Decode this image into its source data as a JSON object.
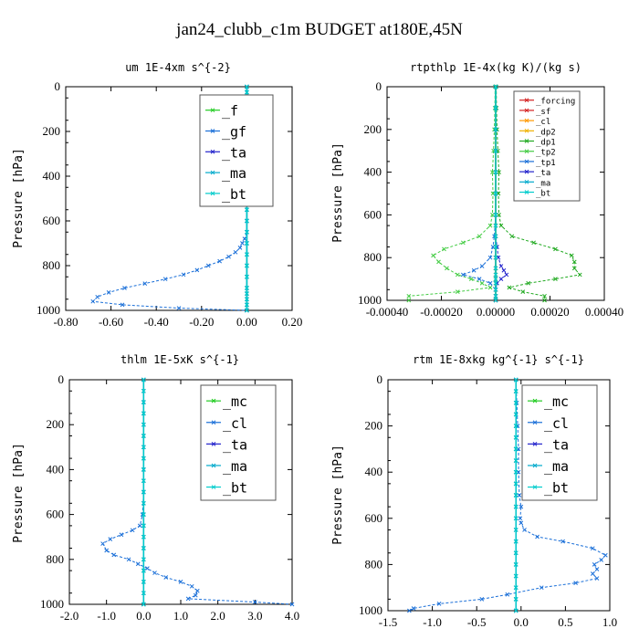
{
  "suptitle": "jan24_clubb_c1m  BUDGET at180E,45N",
  "colors": {
    "forcing": "#d42020",
    "sf": "#d42020",
    "cl": "#ff9900",
    "dp2": "#f0b000",
    "dp1": "#22aa22",
    "tp2": "#44cc44",
    "tp1": "#1a6fd8",
    "ta": "#2222cc",
    "ma": "#00aacc",
    "bt": "#00cccc",
    "f": "#22cc22",
    "gf": "#1a6fd8",
    "mc": "#22cc22",
    "um_gf": "#1a6fd8",
    "profile": "#1a6fd8"
  },
  "chart_data": [
    {
      "type": "line",
      "title": "um   1E-4xm s^{-2}",
      "ylabel": "Pressure [hPa]",
      "xlim": [
        -0.8,
        0.2
      ],
      "ylim": [
        1000,
        0
      ],
      "xticks": [
        "-0.80",
        "-0.60",
        "-0.40",
        "-0.20",
        "0.00",
        "0.20"
      ],
      "yticks": [
        "0",
        "200",
        "400",
        "600",
        "800",
        "1000"
      ],
      "legend": {
        "position": "top-right",
        "entries": [
          "_f",
          "_gf",
          "_ta",
          "_ma",
          "_bt"
        ]
      },
      "pressure": [
        0,
        25,
        50,
        75,
        100,
        150,
        200,
        250,
        300,
        350,
        400,
        450,
        500,
        550,
        600,
        650,
        700,
        750,
        800,
        850,
        900,
        925,
        950,
        975,
        1000
      ],
      "series": [
        {
          "name": "_f",
          "color_key": "f",
          "values": [
            0,
            0,
            0,
            0,
            0,
            0,
            0,
            0,
            0,
            0,
            0,
            0,
            0,
            0,
            0,
            0,
            0,
            0,
            0,
            0,
            0,
            0,
            0,
            0,
            0
          ]
        },
        {
          "name": "_gf",
          "color_key": "um_gf",
          "pressure": [
            0,
            100,
            200,
            300,
            400,
            500,
            600,
            650,
            680,
            700,
            720,
            740,
            760,
            780,
            800,
            820,
            840,
            860,
            880,
            900,
            920,
            940,
            960,
            975,
            990,
            1000
          ],
          "values": [
            0,
            0,
            0,
            0,
            0,
            0,
            0,
            0,
            -0.01,
            -0.02,
            -0.03,
            -0.05,
            -0.08,
            -0.12,
            -0.17,
            -0.22,
            -0.28,
            -0.36,
            -0.45,
            -0.54,
            -0.61,
            -0.66,
            -0.68,
            -0.55,
            -0.3,
            0
          ]
        },
        {
          "name": "_ta",
          "color_key": "ta",
          "values": [
            0,
            0,
            0,
            0,
            0,
            0,
            0,
            0,
            0,
            0,
            0,
            0,
            0,
            0,
            0,
            0,
            0,
            0,
            0,
            0,
            0,
            0,
            0,
            0,
            0
          ]
        },
        {
          "name": "_ma",
          "color_key": "ma",
          "values": [
            0,
            0,
            0,
            0,
            0,
            0,
            0,
            0,
            0,
            0,
            0,
            0,
            0,
            0,
            0,
            0,
            0,
            0,
            0,
            0,
            0,
            0,
            0,
            0,
            0
          ]
        },
        {
          "name": "_bt",
          "color_key": "bt",
          "values": [
            0,
            0,
            0,
            0,
            0,
            0,
            0,
            0,
            0,
            0,
            0,
            0,
            0,
            0,
            0,
            0,
            0,
            0,
            0,
            0,
            0,
            0,
            0,
            0,
            0
          ]
        }
      ]
    },
    {
      "type": "line",
      "title": "rtpthlp   1E-4x(kg K)/(kg s)",
      "ylabel": "Pressure [hPa]",
      "xlim": [
        -0.0004,
        0.0004
      ],
      "ylim": [
        1000,
        0
      ],
      "xticks": [
        "-0.00040",
        "-0.00020",
        "0.00000",
        "0.00020",
        "0.00040"
      ],
      "yticks": [
        "0",
        "200",
        "400",
        "600",
        "800",
        "1000"
      ],
      "legend": {
        "position": "top-right",
        "entries": [
          "_forcing",
          "_sf",
          "_cl",
          "_dp2",
          "_dp1",
          "_tp2",
          "_tp1",
          "_ta",
          "_ma",
          "_bt"
        ]
      },
      "pressure": [
        0,
        100,
        200,
        300,
        400,
        500,
        600,
        650,
        700,
        750,
        800,
        850,
        880,
        900,
        920,
        950,
        980,
        1000
      ],
      "series": [
        {
          "name": "_forcing",
          "color_key": "forcing",
          "values": [
            0,
            0,
            0,
            0,
            0,
            0,
            0,
            0,
            0,
            0,
            0,
            0,
            0,
            0,
            0,
            0,
            0,
            0
          ]
        },
        {
          "name": "_sf",
          "color_key": "sf",
          "values": [
            0,
            0,
            0,
            0,
            0,
            0,
            0,
            0,
            0,
            0,
            0,
            0,
            0,
            0,
            0,
            0,
            0,
            0
          ]
        },
        {
          "name": "_cl",
          "color_key": "cl",
          "values": [
            0,
            0,
            0,
            0,
            0,
            0,
            0,
            0,
            0,
            0,
            0,
            0,
            0,
            0,
            0,
            0,
            0,
            0
          ]
        },
        {
          "name": "_dp2",
          "color_key": "dp2",
          "values": [
            0,
            0,
            0,
            0,
            0,
            0,
            0,
            0,
            0,
            0,
            0,
            0,
            0,
            0,
            0,
            0,
            0,
            0
          ]
        },
        {
          "name": "_dp1",
          "color_key": "dp1",
          "pressure": [
            0,
            100,
            200,
            300,
            400,
            500,
            600,
            650,
            700,
            730,
            760,
            790,
            820,
            850,
            880,
            900,
            920,
            940,
            960,
            980,
            1000
          ],
          "values": [
            2e-06,
            3e-06,
            5e-06,
            8e-06,
            1.2e-05,
            1e-05,
            1.2e-05,
            2e-05,
            6e-05,
            0.00014,
            0.00022,
            0.00028,
            0.00029,
            0.00029,
            0.00031,
            0.00022,
            0.00012,
            5e-05,
            0.0001,
            0.00018,
            0.00018
          ]
        },
        {
          "name": "_tp2",
          "color_key": "tp2",
          "pressure": [
            0,
            100,
            200,
            300,
            400,
            500,
            600,
            650,
            700,
            730,
            760,
            790,
            820,
            850,
            880,
            900,
            920,
            940,
            960,
            980,
            1000
          ],
          "values": [
            -2e-06,
            -3e-06,
            -5e-06,
            -8e-06,
            -1.2e-05,
            -1e-05,
            -1.2e-05,
            -2e-05,
            -6e-05,
            -0.00012,
            -0.00019,
            -0.00023,
            -0.00021,
            -0.00018,
            -0.00014,
            -9e-05,
            -5e-05,
            -2e-05,
            -0.00014,
            -0.00032,
            -0.00032
          ]
        },
        {
          "name": "_tp1",
          "color_key": "tp1",
          "pressure": [
            0,
            100,
            200,
            300,
            400,
            500,
            600,
            700,
            750,
            800,
            840,
            860,
            880,
            900,
            920,
            950,
            980,
            1000
          ],
          "values": [
            0,
            0,
            0,
            0,
            0,
            0,
            0,
            -5e-06,
            -1e-05,
            -2e-05,
            -5e-05,
            -8e-05,
            -0.00012,
            -6e-05,
            -2e-05,
            0,
            0,
            0
          ]
        },
        {
          "name": "_ta",
          "color_key": "ta",
          "pressure": [
            0,
            100,
            200,
            300,
            400,
            500,
            600,
            700,
            750,
            800,
            840,
            860,
            880,
            900,
            920,
            950,
            980,
            1000
          ],
          "values": [
            0,
            0,
            0,
            0,
            0,
            0,
            0,
            0,
            5e-06,
            1e-05,
            2e-05,
            3e-05,
            4e-05,
            2e-05,
            5e-06,
            0,
            0,
            0
          ]
        },
        {
          "name": "_ma",
          "color_key": "ma",
          "values": [
            0,
            0,
            0,
            0,
            0,
            0,
            0,
            0,
            0,
            0,
            0,
            0,
            0,
            0,
            0,
            0,
            0,
            0
          ]
        },
        {
          "name": "_bt",
          "color_key": "bt",
          "values": [
            0,
            0,
            0,
            0,
            0,
            0,
            0,
            0,
            0,
            0,
            0,
            0,
            0,
            0,
            0,
            0,
            0,
            0
          ]
        }
      ]
    },
    {
      "type": "line",
      "title": "thlm   1E-5xK s^{-1}",
      "ylabel": "Pressure [hPa]",
      "xlim": [
        -2.0,
        4.0
      ],
      "ylim": [
        1000,
        0
      ],
      "xticks": [
        "-2.0",
        "-1.0",
        "0.0",
        "1.0",
        "2.0",
        "3.0",
        "4.0"
      ],
      "yticks": [
        "0",
        "200",
        "400",
        "600",
        "800",
        "1000"
      ],
      "legend": {
        "position": "top-right",
        "entries": [
          "_mc",
          "_cl",
          "_ta",
          "_ma",
          "_bt"
        ]
      },
      "pressure": [
        0,
        50,
        100,
        150,
        200,
        250,
        300,
        350,
        400,
        450,
        500,
        550,
        600,
        650,
        700,
        750,
        800,
        850,
        900,
        950,
        1000
      ],
      "series": [
        {
          "name": "_mc",
          "color_key": "mc",
          "values": [
            0,
            0,
            0,
            0,
            0,
            0,
            0,
            0,
            0,
            0,
            0,
            0,
            0,
            0,
            0,
            0,
            0,
            0,
            0,
            0,
            0
          ]
        },
        {
          "name": "_cl",
          "color_key": "profile",
          "pressure": [
            0,
            100,
            200,
            300,
            400,
            500,
            600,
            650,
            670,
            690,
            710,
            730,
            760,
            780,
            800,
            820,
            840,
            860,
            880,
            900,
            920,
            940,
            960,
            975,
            990,
            1000
          ],
          "values": [
            0,
            0,
            0,
            0,
            0,
            0,
            -0.03,
            -0.1,
            -0.3,
            -0.6,
            -0.9,
            -1.1,
            -1.0,
            -0.8,
            -0.4,
            -0.15,
            0.1,
            0.3,
            0.6,
            1.0,
            1.3,
            1.45,
            1.4,
            1.2,
            3.0,
            4.0
          ]
        },
        {
          "name": "_ta",
          "color_key": "ta",
          "values": [
            0,
            0,
            0,
            0,
            0,
            0,
            0,
            0,
            0,
            0,
            0,
            0,
            0,
            0,
            0,
            0,
            0,
            0,
            0,
            0,
            0
          ]
        },
        {
          "name": "_ma",
          "color_key": "ma",
          "values": [
            0,
            0,
            0,
            0,
            0,
            0,
            0,
            0,
            0,
            0,
            0,
            0,
            0,
            0,
            0,
            0,
            0,
            0,
            0,
            0,
            0
          ]
        },
        {
          "name": "_bt",
          "color_key": "bt",
          "values": [
            0,
            0,
            0,
            0,
            0,
            0,
            0,
            0,
            0,
            0,
            0,
            0,
            0,
            0,
            0,
            0,
            0,
            0,
            0,
            0,
            0
          ]
        }
      ]
    },
    {
      "type": "line",
      "title": "rtm   1E-8xkg kg^{-1} s^{-1}",
      "ylabel": "Pressure [hPa]",
      "xlim": [
        -1.5,
        1.1
      ],
      "ylim": [
        1000,
        0
      ],
      "xticks": [
        "-1.5",
        "-1.0",
        "-0.5",
        "0.0",
        "0.5",
        "1.0"
      ],
      "yticks": [
        "0",
        "200",
        "400",
        "600",
        "800",
        "1000"
      ],
      "legend": {
        "position": "top-right",
        "entries": [
          "_mc",
          "_cl",
          "_ta",
          "_ma",
          "_bt"
        ]
      },
      "pressure": [
        0,
        50,
        100,
        150,
        200,
        250,
        300,
        350,
        400,
        450,
        500,
        550,
        600,
        650,
        700,
        750,
        800,
        850,
        900,
        950,
        1000
      ],
      "series": [
        {
          "name": "_mc",
          "color_key": "mc",
          "values": [
            0,
            0,
            0,
            0,
            0,
            0,
            0,
            0,
            0,
            0,
            0,
            0,
            0,
            0,
            0,
            0,
            0,
            0,
            0,
            0,
            0
          ]
        },
        {
          "name": "_cl",
          "color_key": "profile",
          "pressure": [
            0,
            100,
            200,
            300,
            400,
            500,
            550,
            600,
            620,
            650,
            680,
            700,
            730,
            760,
            780,
            800,
            820,
            840,
            860,
            880,
            900,
            930,
            950,
            970,
            990,
            1000
          ],
          "values": [
            0,
            0.01,
            0.02,
            0.03,
            0.03,
            0.04,
            0.06,
            0.05,
            0.06,
            0.1,
            0.25,
            0.55,
            0.9,
            1.05,
            1.0,
            0.92,
            0.95,
            0.9,
            0.95,
            0.7,
            0.3,
            -0.1,
            -0.4,
            -0.9,
            -1.2,
            -1.25
          ]
        },
        {
          "name": "_ta",
          "color_key": "ta",
          "values": [
            0,
            0,
            0,
            0,
            0,
            0,
            0,
            0,
            0,
            0,
            0,
            0,
            0,
            0,
            0,
            0,
            0,
            0,
            0,
            0,
            0
          ]
        },
        {
          "name": "_ma",
          "color_key": "ma",
          "values": [
            0,
            0,
            0,
            0,
            0,
            0,
            0,
            0,
            0,
            0,
            0,
            0,
            0,
            0,
            0,
            0,
            0,
            0,
            0,
            0,
            0
          ]
        },
        {
          "name": "_bt",
          "color_key": "bt",
          "values": [
            0,
            0,
            0,
            0,
            0,
            0,
            0,
            0,
            0,
            0,
            0,
            0,
            0,
            0,
            0,
            0,
            0,
            0,
            0,
            0,
            0
          ]
        }
      ]
    }
  ]
}
